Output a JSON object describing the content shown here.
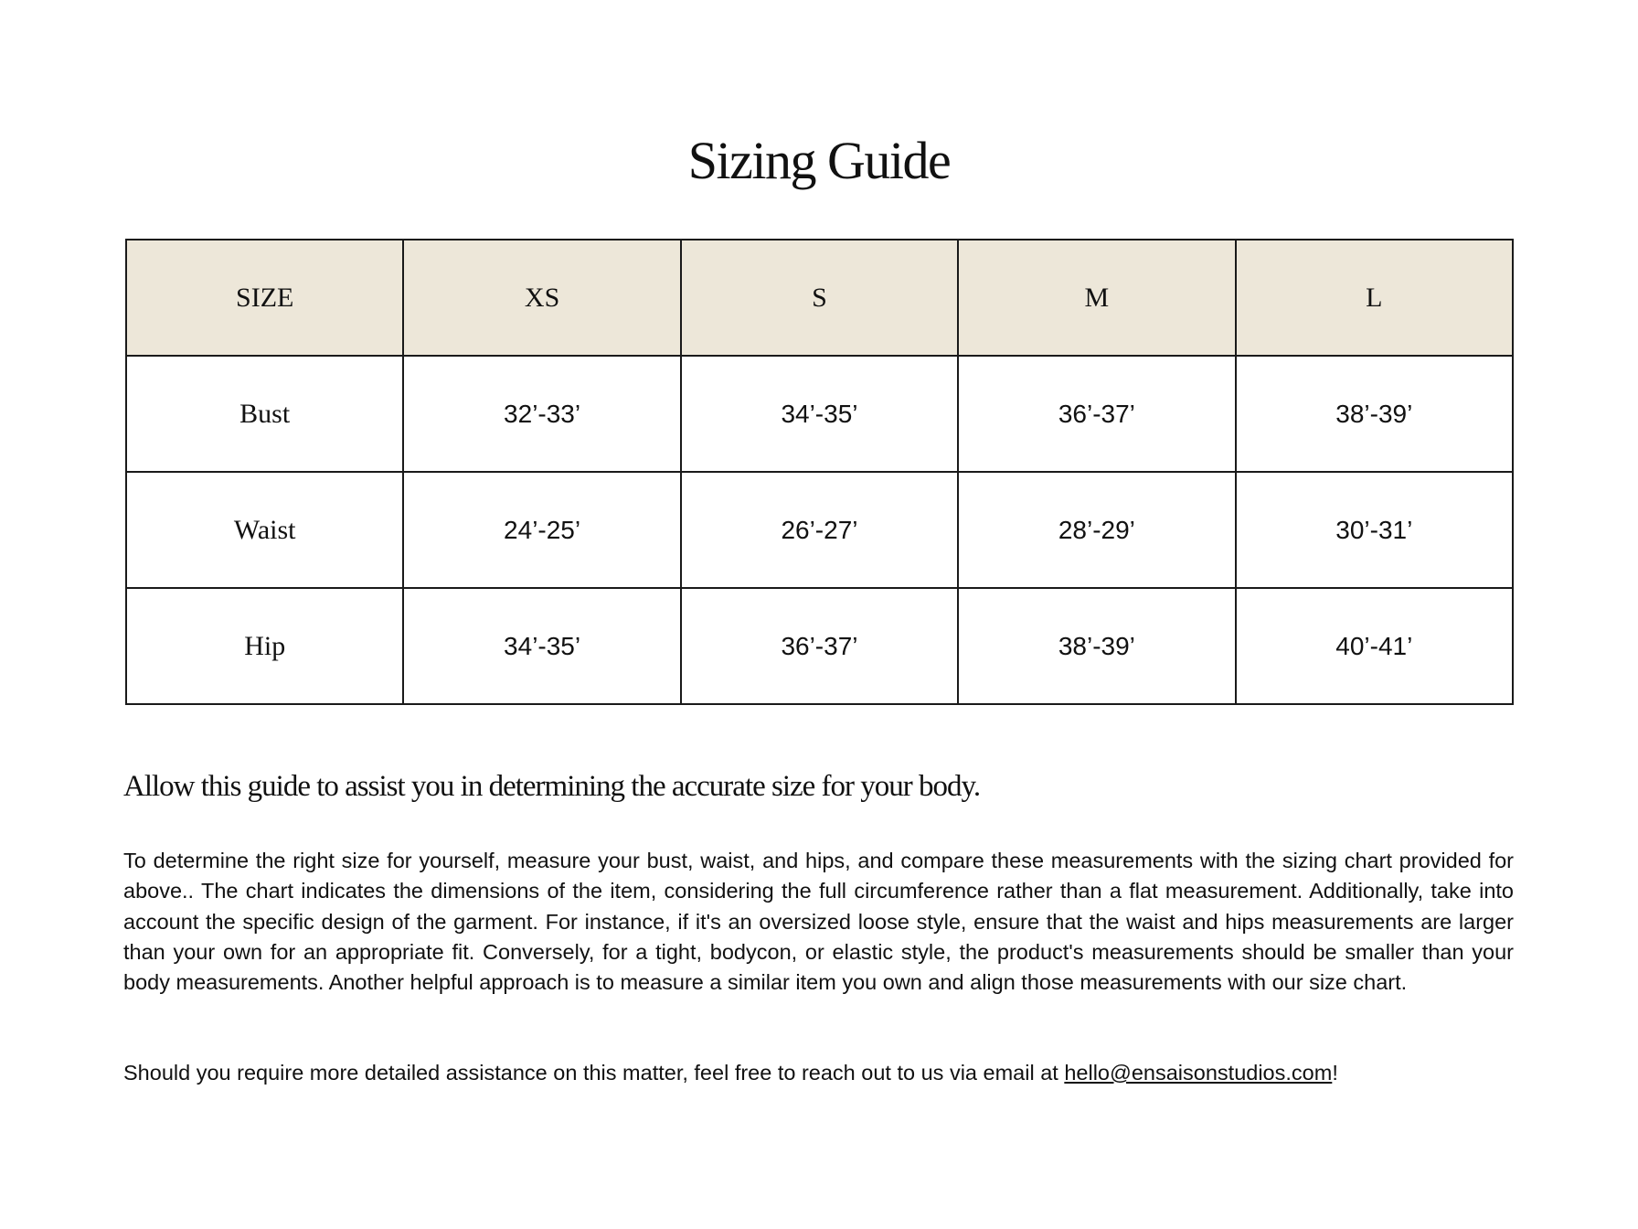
{
  "title": "Sizing Guide",
  "table": {
    "headers": [
      "SIZE",
      "XS",
      "S",
      "M",
      "L"
    ],
    "rows": [
      {
        "label": "Bust",
        "values": [
          "32’-33’",
          "34’-35’",
          "36’-37’",
          "38’-39’"
        ]
      },
      {
        "label": "Waist",
        "values": [
          "24’-25’",
          "26’-27’",
          "28’-29’",
          "30’-31’"
        ]
      },
      {
        "label": "Hip",
        "values": [
          "34’-35’",
          "36’-37’",
          "38’-39’",
          "40’-41’"
        ]
      }
    ],
    "header_bg": "#ede7d9"
  },
  "lead": "Allow this guide to assist you in determining the accurate size for your body.",
  "paragraph1": "To determine the right size for yourself, measure your bust, waist, and hips, and compare these measurements with the sizing chart provided for above.. The chart indicates the dimensions of the item, considering the full circumference rather than a flat measurement. Additionally, take into account the specific design of the garment. For instance, if it's an oversized loose style, ensure that the waist and hips measurements are larger than your own for an appropriate fit. Conversely, for a tight, bodycon, or elastic style, the product's measurements should be smaller than your body measurements. Another helpful approach is to measure a similar item you own and align those measurements with our size chart.",
  "paragraph2": {
    "text": "Should you require more detailed assistance on this matter, feel free to reach out to us via email at ",
    "email": "hello@ensaisonstudios.com",
    "suffix": "!"
  }
}
